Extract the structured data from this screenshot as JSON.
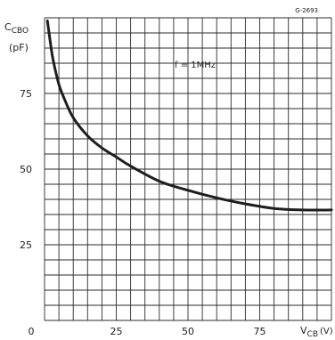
{
  "figure_code": "G-2693",
  "chart_data": {
    "type": "line",
    "ylabel_main": "C",
    "ylabel_sub": "CBO",
    "ylabel_unit": "(pF)",
    "xlabel_main": "V",
    "xlabel_sub": "CB",
    "xlabel_unit": "(V)",
    "annotation": "f = 1MHz",
    "xlim": [
      0,
      100
    ],
    "ylim": [
      0,
      100
    ],
    "x_ticks": [
      0,
      25,
      50,
      75
    ],
    "y_ticks": [
      25,
      50,
      75
    ],
    "grid": true,
    "grid_columns": 20,
    "grid_rows": 20,
    "series": [
      {
        "x": [
          1,
          2,
          3,
          5,
          7,
          10,
          15,
          20,
          25,
          30,
          40,
          50,
          60,
          70,
          80,
          90,
          100
        ],
        "values": [
          99,
          92,
          86,
          78,
          73,
          67,
          61,
          57,
          54,
          51,
          46,
          43,
          40.5,
          38.5,
          37,
          36.5,
          36.5
        ]
      }
    ]
  }
}
